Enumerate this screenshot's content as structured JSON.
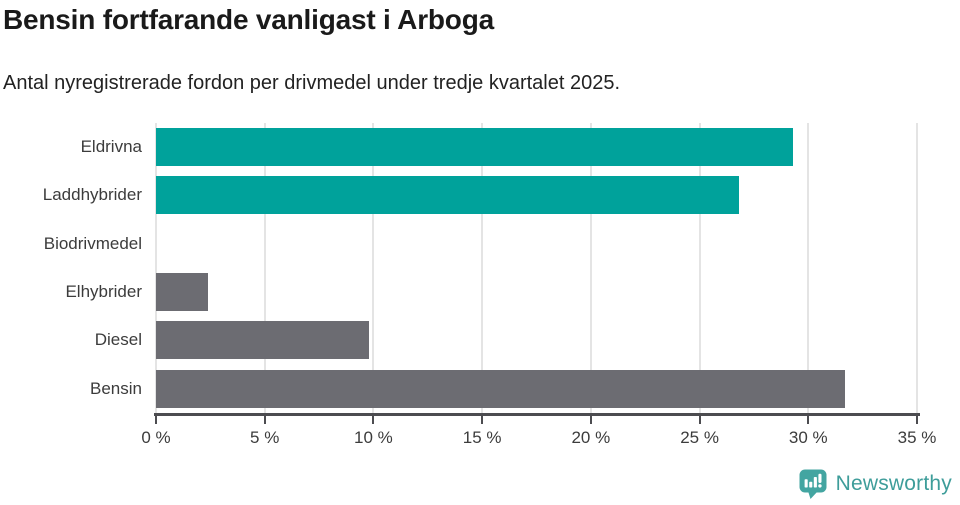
{
  "header": {
    "title": "Bensin fortfarande vanligast i Arboga",
    "subtitle": "Antal nyregistrerade fordon per drivmedel under tredje kvartalet 2025."
  },
  "chart_data": {
    "type": "bar",
    "orientation": "horizontal",
    "categories": [
      "Eldrivna",
      "Laddhybrider",
      "Biodrivmedel",
      "Elhybrider",
      "Diesel",
      "Bensin"
    ],
    "values": [
      29.3,
      26.8,
      0,
      2.4,
      9.8,
      31.7
    ],
    "unit": "%",
    "bar_colors": [
      "#00A29B",
      "#00A29B",
      "#00A29B",
      "#6C6C72",
      "#6C6C72",
      "#6C6C72"
    ],
    "title": "Bensin fortfarande vanligast i Arboga",
    "xlabel": "",
    "ylabel": "",
    "xlim": [
      0,
      35
    ],
    "x_ticks": [
      0,
      5,
      10,
      15,
      20,
      25,
      30,
      35
    ],
    "x_tick_labels": [
      "0 %",
      "5 %",
      "10 %",
      "15 %",
      "20 %",
      "25 %",
      "30 %",
      "35 %"
    ],
    "grid": "vertical-gridlines-on",
    "legend": "none"
  },
  "colors": {
    "teal_bar": "#00A29B",
    "gray_bar": "#6C6C72",
    "gridline": "#E4E4E4",
    "axis_line": "#4C4C50",
    "text_dark": "#1A1A1A",
    "text_label": "#3C3C3C",
    "logo_teal": "#43A5A1",
    "logo_text": "#3E9D9A",
    "page_bg": "#FFFFFF"
  },
  "footer": {
    "brand": "Newsworthy"
  }
}
